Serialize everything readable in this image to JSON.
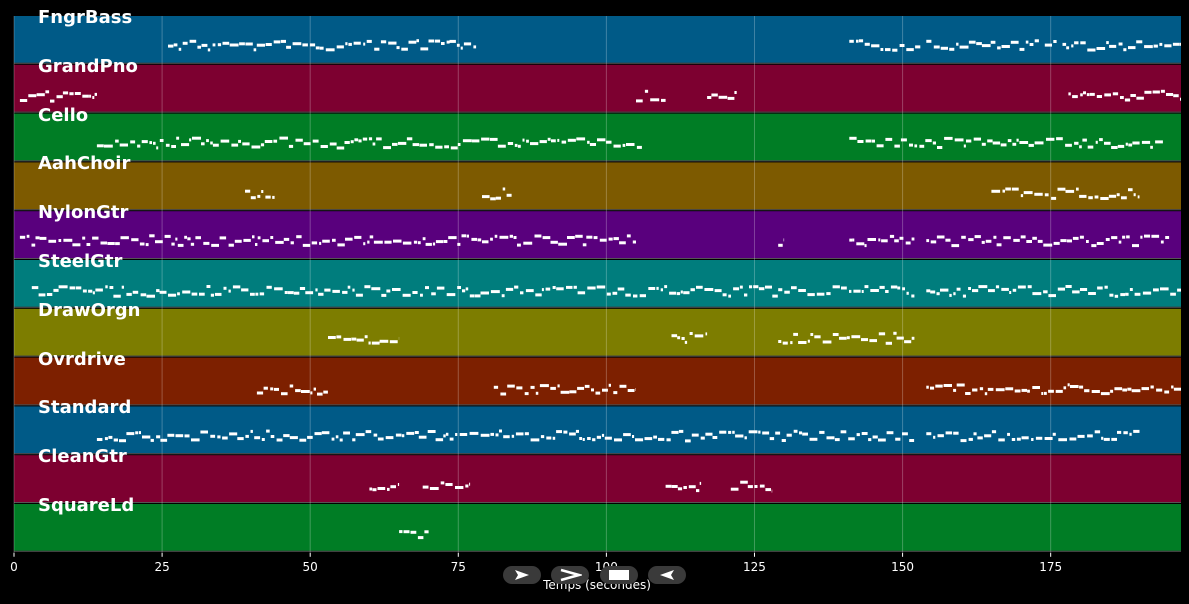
{
  "chart_data": {
    "type": "piano-roll",
    "xlabel": "Temps (secondes)",
    "xlim": [
      0,
      197
    ],
    "x_ticks": [
      "0",
      "25",
      "50",
      "75",
      "100",
      "125",
      "150",
      "175"
    ],
    "tracks": [
      {
        "name": "FngrBass",
        "color": "#005a87",
        "notes": [
          [
            26,
            78
          ],
          [
            141,
            153
          ],
          [
            154,
            173
          ],
          [
            174,
            176
          ],
          [
            177,
            197
          ]
        ]
      },
      {
        "name": "GrandPno",
        "color": "#7d0030",
        "notes": [
          [
            1,
            14
          ],
          [
            105,
            110
          ],
          [
            117,
            122
          ],
          [
            178,
            197
          ]
        ]
      },
      {
        "name": "Cello",
        "color": "#007d25",
        "notes": [
          [
            14,
            106
          ],
          [
            141,
            194
          ]
        ]
      },
      {
        "name": "AahChoir",
        "color": "#7d5a00",
        "notes": [
          [
            39,
            44
          ],
          [
            79,
            84
          ],
          [
            165,
            190
          ]
        ]
      },
      {
        "name": "NylonGtr",
        "color": "#59007d",
        "notes": [
          [
            1,
            105
          ],
          [
            129,
            130
          ],
          [
            141,
            152
          ],
          [
            154,
            195
          ]
        ]
      },
      {
        "name": "SteelGtr",
        "color": "#007d7d",
        "notes": [
          [
            3,
            152
          ],
          [
            154,
            197
          ]
        ]
      },
      {
        "name": "DrawOrgn",
        "color": "#7d7d00",
        "notes": [
          [
            53,
            65
          ],
          [
            111,
            117
          ],
          [
            129,
            152
          ]
        ]
      },
      {
        "name": "Ovrdrive",
        "color": "#7d2000",
        "notes": [
          [
            41,
            53
          ],
          [
            81,
            105
          ],
          [
            154,
            197
          ]
        ]
      },
      {
        "name": "Standard",
        "color": "#005a87",
        "notes": [
          [
            14,
            152
          ],
          [
            154,
            190
          ]
        ]
      },
      {
        "name": "CleanGtr",
        "color": "#7d0030",
        "notes": [
          [
            60,
            65
          ],
          [
            69,
            77
          ],
          [
            110,
            116
          ],
          [
            121,
            128
          ]
        ]
      },
      {
        "name": "SquareLd",
        "color": "#007d25",
        "notes": [
          [
            65,
            70
          ]
        ]
      }
    ]
  },
  "controls": {
    "play_forward": "play-forward",
    "fast_forward": "fast-forward",
    "stop": "stop",
    "rewind": "rewind"
  }
}
